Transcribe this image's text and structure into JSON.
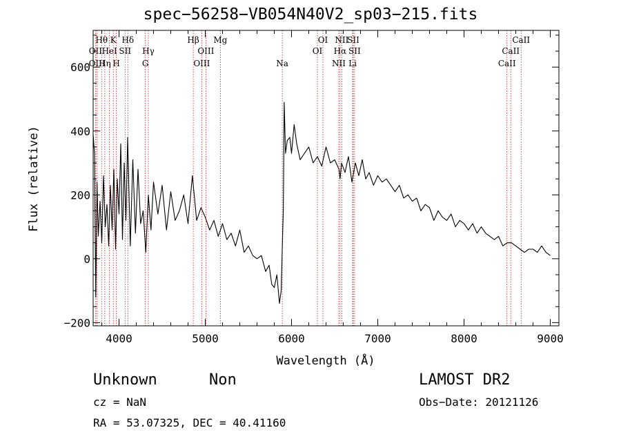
{
  "header": {
    "title": "spec−56258−VB054N40V2_sp03−215.fits"
  },
  "footer": {
    "classification": "Unknown",
    "subclass": "Non",
    "survey": "LAMOST DR2",
    "cz": "cz = NaN",
    "obs_date": "Obs−Date: 20121126",
    "coords": "RA =  53.07325, DEC =  40.41160"
  },
  "chart_data": {
    "type": "line",
    "title": "spec−56258−VB054N40V2_sp03−215.fits",
    "xlabel": "Wavelength (Å)",
    "ylabel": "Flux (relative)",
    "xlim": [
      3700,
      9100
    ],
    "ylim": [
      -210,
      715
    ],
    "xticks": [
      4000,
      5000,
      6000,
      7000,
      8000,
      9000
    ],
    "yticks": [
      -200,
      0,
      200,
      400,
      600
    ],
    "line_color": "#000000",
    "marker_color": "#b22222",
    "series": [
      {
        "x": [
          3700,
          3715,
          3730,
          3745,
          3760,
          3780,
          3800,
          3820,
          3840,
          3860,
          3880,
          3900,
          3920,
          3940,
          3960,
          3980,
          4000,
          4020,
          4040,
          4060,
          4080,
          4100,
          4130,
          4160,
          4190,
          4220,
          4250,
          4280,
          4310,
          4340,
          4370,
          4400,
          4450,
          4500,
          4550,
          4600,
          4650,
          4700,
          4750,
          4800,
          4850,
          4900,
          4950,
          5000,
          5050,
          5100,
          5150,
          5200,
          5250,
          5300,
          5350,
          5400,
          5450,
          5500,
          5550,
          5600,
          5650,
          5700,
          5740,
          5770,
          5800,
          5830,
          5860,
          5880,
          5895,
          5905,
          5915,
          5930,
          5950,
          5980,
          6000,
          6030,
          6060,
          6100,
          6150,
          6200,
          6250,
          6300,
          6350,
          6400,
          6450,
          6500,
          6550,
          6563,
          6580,
          6620,
          6660,
          6700,
          6740,
          6780,
          6820,
          6860,
          6900,
          6950,
          7000,
          7050,
          7100,
          7150,
          7200,
          7250,
          7300,
          7350,
          7400,
          7450,
          7500,
          7550,
          7600,
          7650,
          7700,
          7750,
          7800,
          7850,
          7900,
          7950,
          8000,
          8050,
          8100,
          8150,
          8200,
          8250,
          8300,
          8350,
          8400,
          8450,
          8500,
          8550,
          8600,
          8650,
          8700,
          8750,
          8800,
          8850,
          8900,
          8950,
          9000
        ],
        "values": [
          390,
          330,
          -120,
          240,
          70,
          180,
          50,
          260,
          100,
          170,
          40,
          230,
          90,
          280,
          30,
          250,
          140,
          360,
          60,
          300,
          120,
          380,
          40,
          310,
          80,
          280,
          110,
          150,
          20,
          200,
          90,
          240,
          140,
          230,
          90,
          210,
          120,
          150,
          200,
          110,
          260,
          120,
          160,
          130,
          90,
          120,
          70,
          110,
          60,
          80,
          40,
          90,
          20,
          40,
          10,
          0,
          10,
          -40,
          -20,
          -80,
          -90,
          -50,
          -140,
          -100,
          60,
          150,
          490,
          330,
          370,
          380,
          330,
          420,
          360,
          310,
          330,
          350,
          300,
          320,
          290,
          350,
          300,
          310,
          280,
          250,
          300,
          270,
          320,
          240,
          300,
          260,
          310,
          250,
          270,
          230,
          260,
          240,
          250,
          230,
          210,
          230,
          190,
          200,
          180,
          190,
          150,
          170,
          160,
          120,
          150,
          130,
          120,
          140,
          100,
          120,
          110,
          90,
          110,
          80,
          100,
          80,
          70,
          60,
          70,
          40,
          50,
          50,
          40,
          30,
          20,
          30,
          30,
          20,
          40,
          20,
          10
        ]
      }
    ],
    "lines": [
      {
        "name": "Hθ",
        "wavelength": 3798,
        "row": 1
      },
      {
        "name": "OII",
        "wavelength": 3727,
        "row": 2
      },
      {
        "name": "OIII",
        "wavelength": 3745,
        "row": 3
      },
      {
        "name": "Hη",
        "wavelength": 3835,
        "row": 3
      },
      {
        "name": "K",
        "wavelength": 3934,
        "row": 1
      },
      {
        "name": "HeI",
        "wavelength": 3889,
        "row": 2
      },
      {
        "name": "H",
        "wavelength": 3969,
        "row": 3
      },
      {
        "name": "Hδ",
        "wavelength": 4102,
        "row": 1
      },
      {
        "name": "SII",
        "wavelength": 4070,
        "row": 2
      },
      {
        "name": "Hγ",
        "wavelength": 4340,
        "row": 2
      },
      {
        "name": "G",
        "wavelength": 4305,
        "row": 3
      },
      {
        "name": "Hβ",
        "wavelength": 4861,
        "row": 1
      },
      {
        "name": "OIII",
        "wavelength": 5007,
        "row": 2
      },
      {
        "name": "OIII",
        "wavelength": 4959,
        "row": 3
      },
      {
        "name": "Mg",
        "wavelength": 5175,
        "row": 1
      },
      {
        "name": "Na",
        "wavelength": 5893,
        "row": 3
      },
      {
        "name": "OI",
        "wavelength": 6364,
        "row": 1
      },
      {
        "name": "OI",
        "wavelength": 6300,
        "row": 2
      },
      {
        "name": "NII",
        "wavelength": 6583,
        "row": 1
      },
      {
        "name": "Hα",
        "wavelength": 6563,
        "row": 2
      },
      {
        "name": "NII",
        "wavelength": 6548,
        "row": 3
      },
      {
        "name": "SII",
        "wavelength": 6716,
        "row": 1
      },
      {
        "name": "SII",
        "wavelength": 6731,
        "row": 2
      },
      {
        "name": "Li",
        "wavelength": 6708,
        "row": 3
      },
      {
        "name": "CaII",
        "wavelength": 8662,
        "row": 1
      },
      {
        "name": "CaII",
        "wavelength": 8542,
        "row": 2
      },
      {
        "name": "CaII",
        "wavelength": 8498,
        "row": 3
      }
    ]
  }
}
